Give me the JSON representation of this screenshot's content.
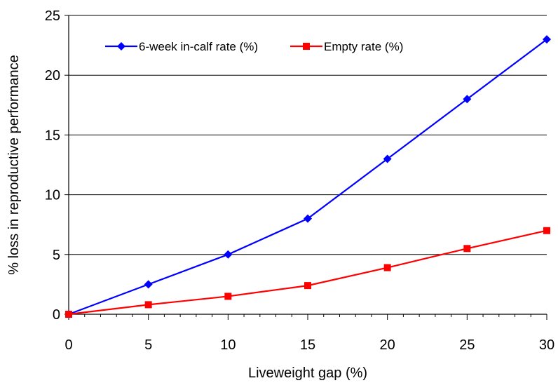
{
  "chart_data": {
    "type": "line",
    "title": "",
    "xlabel": "Liveweight gap (%)",
    "ylabel": "% loss in reproductive performance",
    "x": [
      0,
      5,
      10,
      15,
      20,
      25,
      30
    ],
    "x_ticks": [
      "0",
      "5",
      "10",
      "15",
      "20",
      "25",
      "30"
    ],
    "y_ticks": [
      "0",
      "5",
      "10",
      "15",
      "20",
      "25"
    ],
    "xlim": [
      0,
      30
    ],
    "ylim": [
      0,
      25
    ],
    "grid": "horizontal",
    "legend_position": "top-left",
    "series": [
      {
        "name": "6-week in-calf rate (%)",
        "color": "#0000ff",
        "marker": "diamond",
        "values": [
          0,
          2.5,
          5,
          8,
          13,
          18,
          23
        ]
      },
      {
        "name": "Empty rate (%)",
        "color": "#ff0000",
        "marker": "square",
        "values": [
          0,
          0.8,
          1.5,
          2.4,
          3.9,
          5.5,
          7
        ]
      }
    ]
  }
}
